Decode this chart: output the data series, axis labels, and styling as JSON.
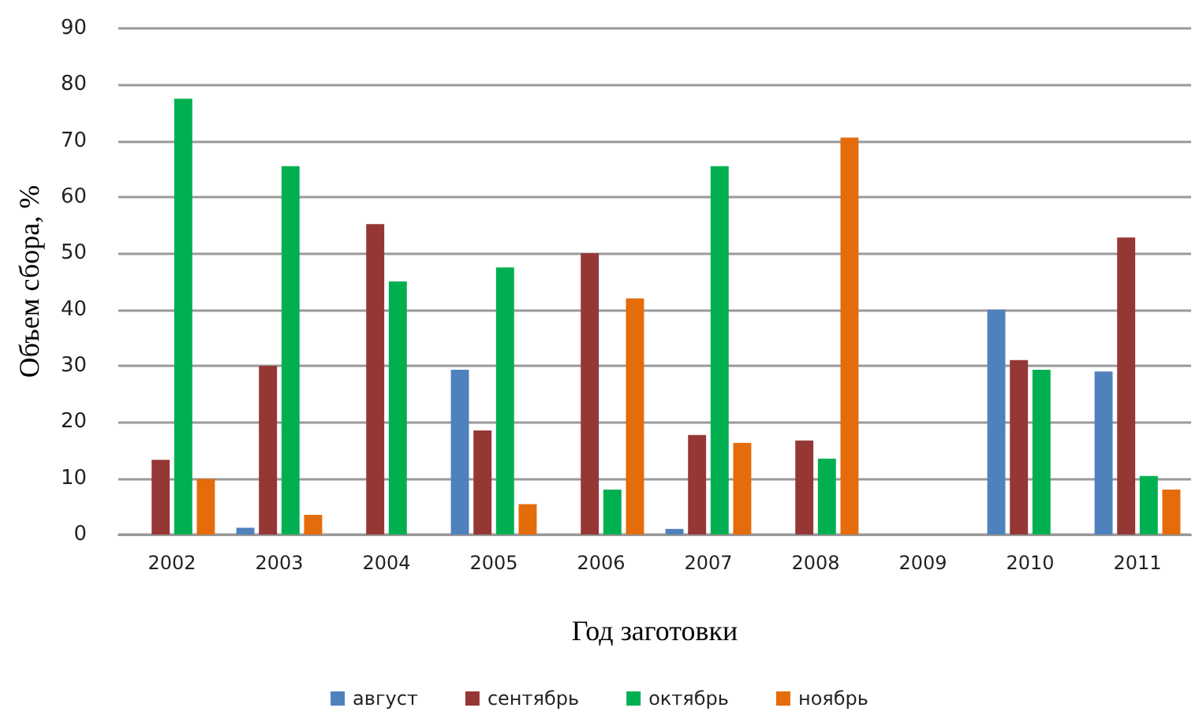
{
  "chart_data": {
    "type": "bar",
    "xlabel": "Год заготовки",
    "ylabel": "Объем сбора, %",
    "categories": [
      "2002",
      "2003",
      "2004",
      "2005",
      "2006",
      "2007",
      "2008",
      "2009",
      "2010",
      "2011"
    ],
    "series": [
      {
        "name": "август",
        "color": "#4f81bd",
        "values": [
          null,
          1.2,
          null,
          29.3,
          null,
          1,
          null,
          null,
          40,
          29
        ]
      },
      {
        "name": "сентябрь",
        "color": "#953735",
        "values": [
          13.3,
          30,
          55.2,
          18.5,
          50,
          17.7,
          16.7,
          null,
          31,
          52.8
        ]
      },
      {
        "name": "октябрь",
        "color": "#00b050",
        "values": [
          77.5,
          65.5,
          45,
          47.5,
          8,
          65.5,
          13.5,
          null,
          29.3,
          10.4
        ]
      },
      {
        "name": "ноябрь",
        "color": "#e46c0a",
        "values": [
          9.9,
          3.5,
          null,
          5.4,
          42,
          16.3,
          70.6,
          null,
          null,
          8
        ]
      }
    ],
    "ylim": [
      0,
      90
    ],
    "yticks": [
      0,
      10,
      20,
      30,
      40,
      50,
      60,
      70,
      80,
      90
    ],
    "grid": "y",
    "legend": "bottom"
  }
}
